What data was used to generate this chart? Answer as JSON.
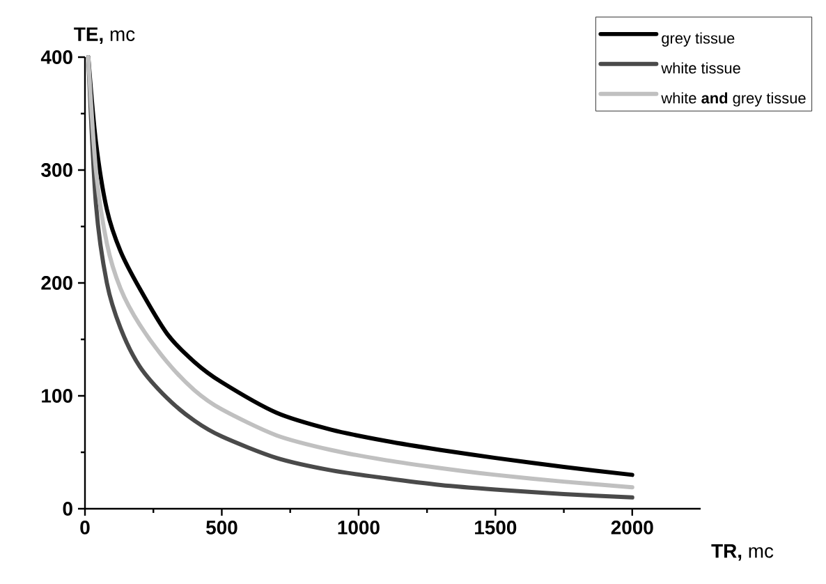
{
  "chart_data": {
    "type": "line",
    "xlabel": "**TR,** mc",
    "ylabel": "**TE,** mc",
    "xlim": [
      0,
      2250
    ],
    "xticks": [
      0,
      500,
      1000,
      1500,
      2000
    ],
    "ylim": [
      0,
      400
    ],
    "yticks": [
      0,
      100,
      200,
      300,
      400
    ],
    "legend": "top right",
    "grid": false,
    "marker": "none",
    "line_style": "solid",
    "series": [
      {
        "name": "grey tissue",
        "color": "#000000",
        "x": [
          12,
          40,
          80,
          130,
          200,
          300,
          400,
          500,
          700,
          900,
          1100,
          1300,
          1500,
          1750,
          2000
        ],
        "values": [
          400,
          325,
          265,
          228,
          195,
          155,
          130,
          112,
          85,
          70,
          60,
          52,
          45,
          37,
          30
        ]
      },
      {
        "name": "white tissue",
        "color": "#4a4a4a",
        "x": [
          12,
          40,
          80,
          130,
          200,
          300,
          400,
          500,
          700,
          900,
          1100,
          1300,
          1500,
          1750,
          2000
        ],
        "values": [
          400,
          270,
          200,
          160,
          126,
          98,
          78,
          64,
          45,
          34,
          27,
          21,
          17,
          13,
          10
        ]
      },
      {
        "name": "white **and** grey tissue",
        "color": "#c0c0c0",
        "x": [
          12,
          40,
          80,
          130,
          200,
          300,
          400,
          500,
          700,
          900,
          1100,
          1300,
          1500,
          1750,
          2000
        ],
        "values": [
          400,
          300,
          235,
          195,
          163,
          130,
          105,
          88,
          65,
          52,
          43,
          36,
          30,
          24,
          19
        ]
      }
    ]
  }
}
